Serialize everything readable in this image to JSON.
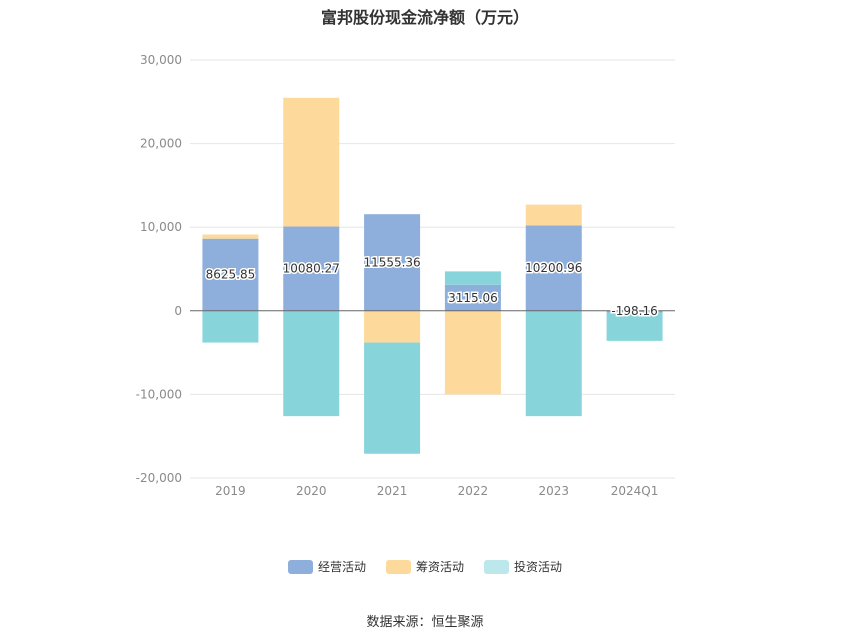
{
  "title": "富邦股份现金流净额（万元）",
  "source_text": "数据来源：恒生聚源",
  "colors": {
    "operating": "#8eaedc",
    "financing": "#fdd99b",
    "investing": "#87d5da",
    "investing_legend": "#bde8eb"
  },
  "chart_data": {
    "type": "bar",
    "stacked": true,
    "categories": [
      "2019",
      "2020",
      "2021",
      "2022",
      "2023",
      "2024Q1"
    ],
    "ylim": [
      -20000,
      30000
    ],
    "yticks": [
      30000,
      20000,
      10000,
      0,
      -10000,
      -20000
    ],
    "ytick_labels": [
      "30,000",
      "20,000",
      "10,000",
      "0",
      "-10,000",
      "-20,000"
    ],
    "grid": true,
    "legend_position": "bottom",
    "series": [
      {
        "name": "经营活动",
        "key": "operating",
        "values": [
          8625.85,
          10080.27,
          11555.36,
          3115.06,
          10200.96,
          -198.16
        ],
        "labels": [
          "8625.85",
          "10080.27",
          "11555.36",
          "3115.06",
          "10200.96",
          "-198.16"
        ]
      },
      {
        "name": "筹资活动",
        "key": "financing",
        "values": [
          500,
          15400,
          -3800,
          -10000,
          2500,
          0
        ]
      },
      {
        "name": "投资活动",
        "key": "investing",
        "values": [
          -3800,
          -12600,
          -13300,
          1600,
          -12600,
          -3400
        ]
      }
    ]
  }
}
